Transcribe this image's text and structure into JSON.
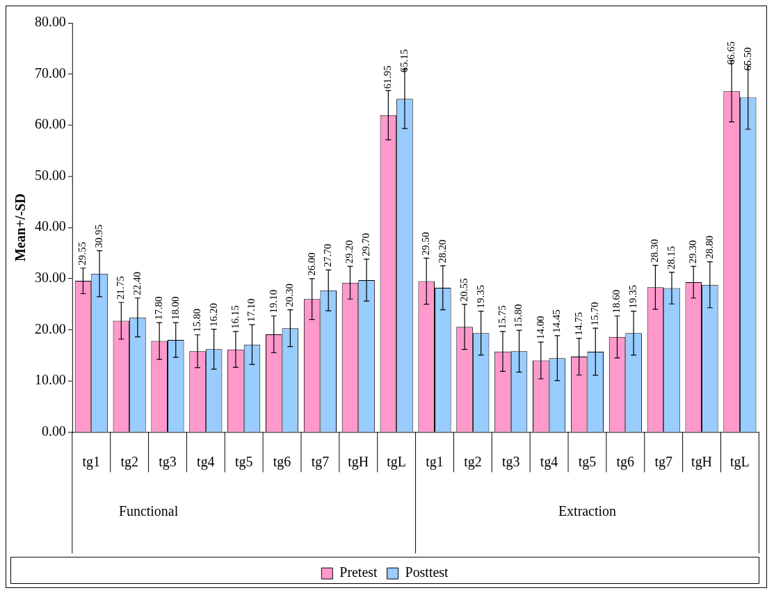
{
  "chart_data": {
    "type": "bar",
    "categories": [
      "tg1",
      "tg2",
      "tg3",
      "tg4",
      "tg5",
      "tg6",
      "tg7",
      "tgH",
      "tgL",
      "tg1",
      "tg2",
      "tg3",
      "tg4",
      "tg5",
      "tg6",
      "tg7",
      "tgH",
      "tgL"
    ],
    "series": [
      {
        "name": "Pretest",
        "color": "#ff99cc",
        "values": [
          29.55,
          21.75,
          17.8,
          15.8,
          16.15,
          19.1,
          26.0,
          29.2,
          61.95,
          29.5,
          20.55,
          15.75,
          14.0,
          14.75,
          18.6,
          28.3,
          29.3,
          66.65
        ],
        "value_labels": [
          "29.55",
          "21.75",
          "17.80",
          "15.80",
          "16.15",
          "19.10",
          "26.00",
          "29.20",
          "61.95",
          "29.50",
          "20.55",
          "15.75",
          "14.00",
          "14.75",
          "18.60",
          "28.30",
          "29.30",
          "66.65"
        ],
        "errors": [
          2.5,
          3.6,
          3.6,
          3.2,
          3.5,
          3.6,
          4.0,
          3.2,
          4.8,
          4.5,
          4.4,
          3.9,
          3.6,
          3.6,
          4.1,
          4.3,
          3.1,
          6.0
        ]
      },
      {
        "name": "Posttest",
        "color": "#99ccff",
        "values": [
          30.95,
          22.4,
          18.0,
          16.2,
          17.1,
          20.3,
          27.7,
          29.7,
          65.15,
          28.2,
          19.35,
          15.8,
          14.45,
          15.7,
          19.35,
          28.15,
          28.8,
          65.5
        ],
        "value_labels": [
          "30.95",
          "22.40",
          "18.00",
          "16.20",
          "17.10",
          "20.30",
          "27.70",
          "29.70",
          "65.15",
          "28.20",
          "19.35",
          "15.80",
          "14.45",
          "15.70",
          "19.35",
          "28.15",
          "28.80",
          "65.50"
        ],
        "errors": [
          4.5,
          3.8,
          3.4,
          3.9,
          3.9,
          3.6,
          4.0,
          4.1,
          5.8,
          4.3,
          4.3,
          4.1,
          4.4,
          4.6,
          4.3,
          3.1,
          4.5,
          6.3
        ]
      }
    ],
    "ylabel": "Mean+/-SD",
    "ylim": [
      0,
      80
    ],
    "yticks": [
      {
        "value": 0,
        "label": "0.00"
      },
      {
        "value": 10,
        "label": "10.00"
      },
      {
        "value": 20,
        "label": "20.00"
      },
      {
        "value": 30,
        "label": "30.00"
      },
      {
        "value": 40,
        "label": "40.00"
      },
      {
        "value": 50,
        "label": "50.00"
      },
      {
        "value": 60,
        "label": "60.00"
      },
      {
        "value": 70,
        "label": "70.00"
      },
      {
        "value": 80,
        "label": "80.00"
      }
    ],
    "annotations": [
      "Functional",
      "Extraction"
    ],
    "grid": false,
    "legend": "bottom"
  }
}
